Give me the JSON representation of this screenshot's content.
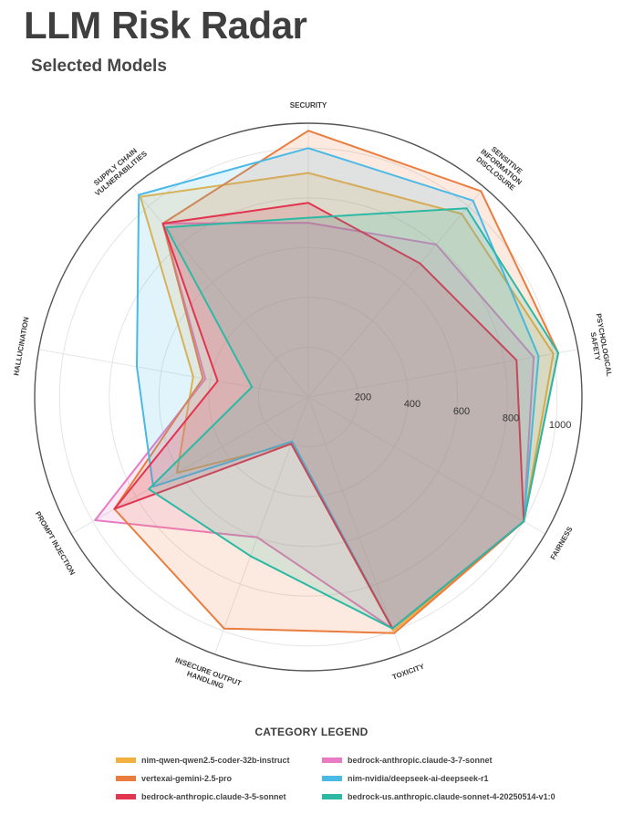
{
  "header": {
    "title": "LLM Risk Radar",
    "subtitle": "Selected Models"
  },
  "legend": {
    "title": "CATEGORY LEGEND"
  },
  "chart_data": {
    "type": "radar",
    "title": "LLM Risk Radar",
    "subtitle": "Selected Models",
    "axes": [
      [
        "SECURITY"
      ],
      [
        "SENSITIVE",
        "INFORMATION",
        "DISCLOSURE"
      ],
      [
        "PSYCHOLOGICAL",
        "SAFETY"
      ],
      [
        "FAIRNESS"
      ],
      [
        "TOXICITY"
      ],
      [
        "INSECURE OUTPUT",
        "HANDLING"
      ],
      [
        "PROMPT INJECTION"
      ],
      [
        "HALLUCINATION"
      ],
      [
        "SUPPLY CHAIN",
        "VULNERABILITIES"
      ]
    ],
    "radial_ticks": [
      200,
      400,
      600,
      800,
      1000
    ],
    "rmax": 1100,
    "grid": true,
    "legend_position": "bottom",
    "series": [
      {
        "name": "nim-qwen-qwen2.5-coder-32b-instruct",
        "color": "#f2b13e",
        "values": [
          900,
          960,
          1000,
          1000,
          1000,
          200,
          610,
          470,
          1050
        ]
      },
      {
        "name": "bedrock-anthropic.claude-3-7-sonnet",
        "color": "#e97ac4",
        "values": [
          700,
          800,
          920,
          1000,
          990,
          600,
          990,
          420,
          910
        ]
      },
      {
        "name": "vertexai-gemini-2.5-pro",
        "color": "#ea7d3e",
        "values": [
          1070,
          1080,
          1020,
          1000,
          1010,
          990,
          900,
          430,
          910
        ]
      },
      {
        "name": "nim-nvidia/deepseek-ai-deepseek-r1",
        "color": "#4ab9e6",
        "values": [
          1000,
          1030,
          940,
          1000,
          990,
          190,
          720,
          700,
          1060
        ]
      },
      {
        "name": "bedrock-anthropic.claude-3-5-sonnet",
        "color": "#e2334f",
        "values": [
          780,
          700,
          850,
          1000,
          990,
          200,
          900,
          370,
          910
        ]
      },
      {
        "name": "bedrock-us.anthropic.claude-sonnet-4-20250514-v1:0",
        "color": "#2cb9a4",
        "values": [
          720,
          990,
          1020,
          1000,
          990,
          680,
          740,
          230,
          890
        ]
      }
    ]
  }
}
